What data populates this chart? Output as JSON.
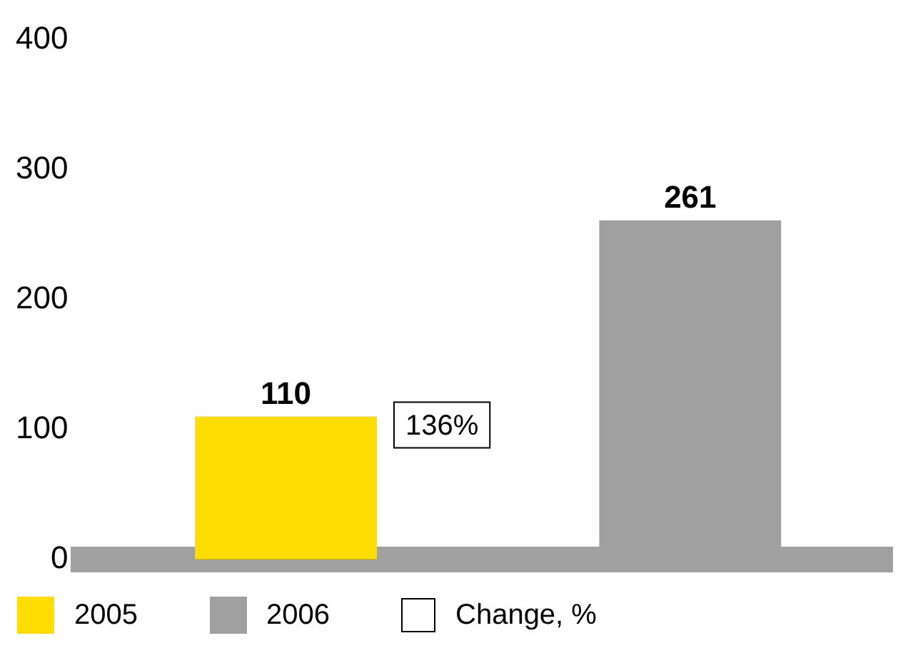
{
  "chart_data": {
    "type": "bar",
    "categories": [
      null,
      null
    ],
    "series": [
      {
        "name": "2005",
        "color": "#ffdd00",
        "values": [
          110,
          null
        ]
      },
      {
        "name": "2006",
        "color": "#a0a0a0",
        "values": [
          null,
          261
        ]
      }
    ],
    "ylim": [
      0,
      400
    ],
    "yticks": [
      0,
      100,
      200,
      300,
      400
    ],
    "grid": false,
    "data_labels": true,
    "legend": "bottom",
    "annotations": [
      "136%",
      "Change, %"
    ]
  }
}
